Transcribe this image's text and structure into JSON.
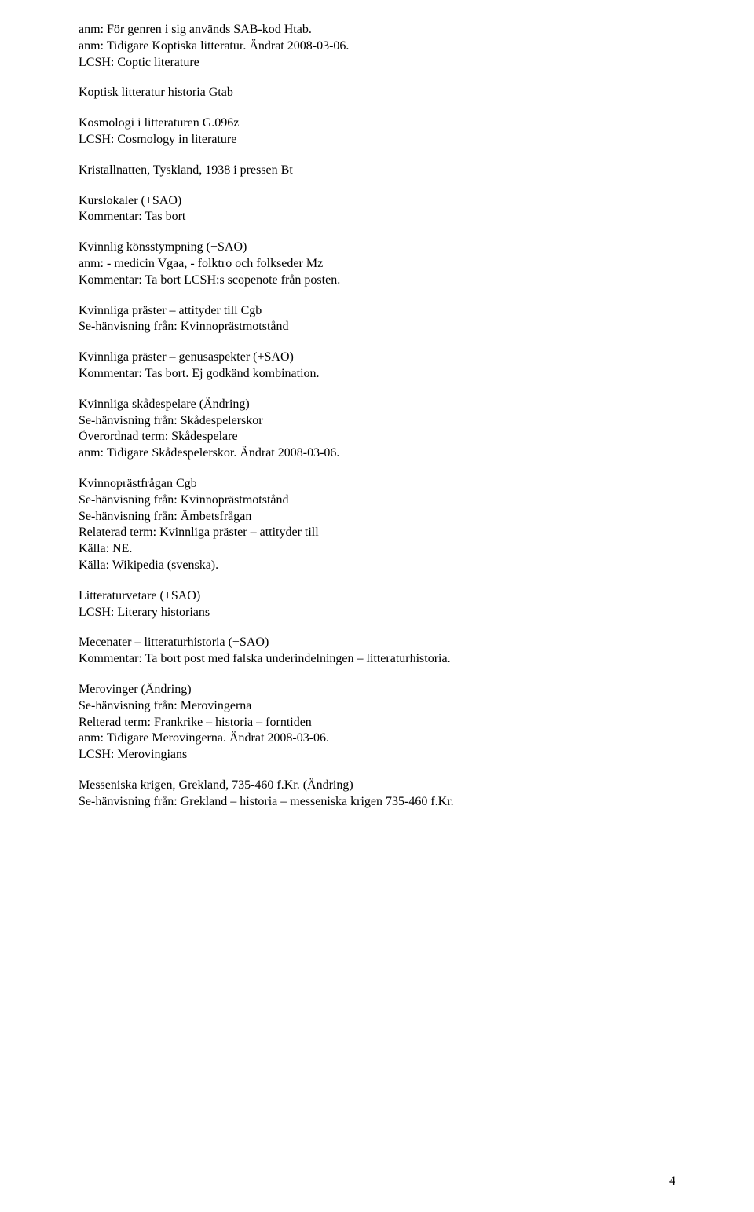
{
  "page": {
    "number": "4",
    "font_family": "Times New Roman",
    "font_size_pt": 12,
    "text_color": "#000000",
    "background_color": "#ffffff"
  },
  "blocks": [
    {
      "id": "b1",
      "lines": [
        "anm: För genren i sig används SAB-kod Htab.",
        "anm: Tidigare Koptiska litteratur. Ändrat 2008-03-06.",
        "LCSH: Coptic literature"
      ]
    },
    {
      "id": "b2",
      "lines": [
        "Koptisk litteratur historia Gtab"
      ]
    },
    {
      "id": "b3",
      "lines": [
        "Kosmologi i litteraturen G.096z",
        "LCSH: Cosmology in literature"
      ]
    },
    {
      "id": "b4",
      "lines": [
        "Kristallnatten, Tyskland, 1938 i pressen Bt"
      ]
    },
    {
      "id": "b5",
      "lines": [
        "Kurslokaler (+SAO)",
        "Kommentar: Tas bort"
      ]
    },
    {
      "id": "b6",
      "lines": [
        "Kvinnlig könsstympning (+SAO)",
        "anm: - medicin Vgaa, - folktro och folkseder Mz",
        "Kommentar: Ta bort LCSH:s scopenote från posten."
      ]
    },
    {
      "id": "b7",
      "lines": [
        "Kvinnliga präster – attityder till Cgb",
        "Se-hänvisning från: Kvinnoprästmotstånd"
      ]
    },
    {
      "id": "b8",
      "lines": [
        "Kvinnliga präster – genusaspekter (+SAO)",
        "Kommentar: Tas bort. Ej godkänd kombination."
      ]
    },
    {
      "id": "b9",
      "lines": [
        "Kvinnliga skådespelare (Ändring)",
        "Se-hänvisning från: Skådespelerskor",
        "Överordnad term: Skådespelare",
        "anm: Tidigare Skådespelerskor. Ändrat 2008-03-06."
      ]
    },
    {
      "id": "b10",
      "lines": [
        "Kvinnoprästfrågan Cgb",
        "Se-hänvisning från: Kvinnoprästmotstånd",
        "Se-hänvisning från: Ämbetsfrågan",
        "Relaterad term: Kvinnliga präster – attityder till",
        "Källa: NE.",
        "Källa: Wikipedia (svenska)."
      ]
    },
    {
      "id": "b11",
      "lines": [
        "Litteraturvetare (+SAO)",
        "LCSH: Literary historians"
      ]
    },
    {
      "id": "b12",
      "lines": [
        "Mecenater – litteraturhistoria (+SAO)",
        "Kommentar: Ta bort post med falska underindelningen – litteraturhistoria."
      ]
    },
    {
      "id": "b13",
      "lines": [
        "Merovinger (Ändring)",
        "Se-hänvisning från: Merovingerna",
        "Relterad term: Frankrike – historia – forntiden",
        "anm: Tidigare Merovingerna. Ändrat 2008-03-06.",
        "LCSH: Merovingians"
      ]
    },
    {
      "id": "b14",
      "lines": [
        "Messeniska krigen, Grekland, 735-460 f.Kr. (Ändring)",
        "Se-hänvisning från: Grekland – historia – messeniska krigen 735-460 f.Kr."
      ]
    }
  ]
}
